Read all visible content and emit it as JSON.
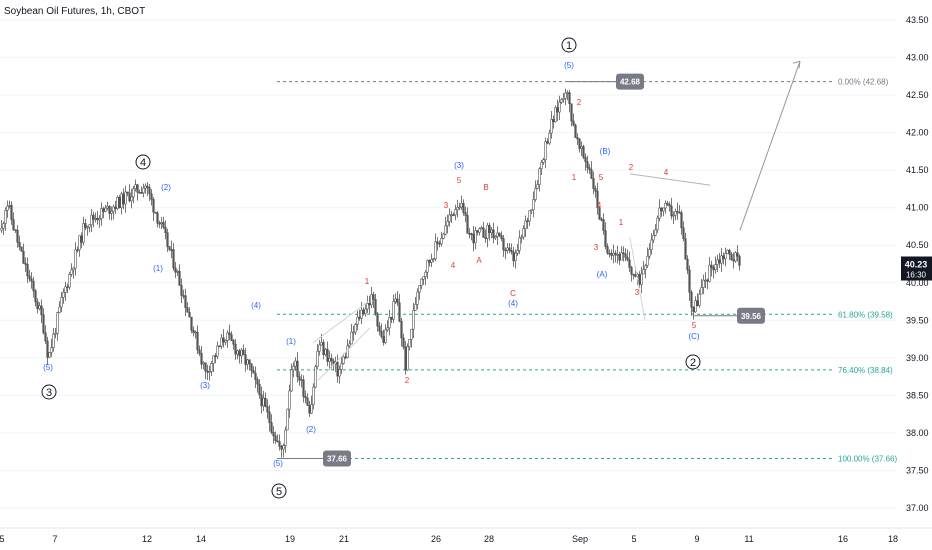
{
  "title": "Soybean Oil Futures, 1h, CBOT",
  "colors": {
    "candle": "#555555",
    "grid": "#f0f3fa",
    "blue_label": "#2962ff",
    "red_label": "#e53935",
    "black_label": "#131722",
    "fib": "#26a69a",
    "price_box": "#787b86",
    "last_box": "#131722"
  },
  "chart_data": {
    "type": "candlestick",
    "title": "Soybean Oil Futures, 1h, CBOT",
    "ylim": [
      36.75,
      43.6
    ],
    "y_ticks": [
      "43.50",
      "43.00",
      "42.50",
      "42.00",
      "41.50",
      "41.00",
      "40.50",
      "40.00",
      "39.50",
      "39.00",
      "38.50",
      "38.00",
      "37.50",
      "37.00"
    ],
    "x_ticks": [
      "5",
      "7",
      "12",
      "14",
      "19",
      "21",
      "26",
      "28",
      "Sep",
      "5",
      "9",
      "11",
      "16",
      "18"
    ],
    "path_points": [
      [
        40.7,
        1
      ],
      [
        41.1,
        6
      ],
      [
        40.4,
        20
      ],
      [
        39.5,
        42
      ],
      [
        39.0,
        48
      ],
      [
        39.8,
        62
      ],
      [
        40.8,
        85
      ],
      [
        41.0,
        110
      ],
      [
        41.2,
        132
      ],
      [
        41.3,
        145
      ],
      [
        40.7,
        162
      ],
      [
        40.2,
        175
      ],
      [
        39.5,
        190
      ],
      [
        38.8,
        205
      ],
      [
        39.3,
        225
      ],
      [
        38.9,
        248
      ],
      [
        38.2,
        268
      ],
      [
        37.7,
        282
      ],
      [
        39.0,
        292
      ],
      [
        38.3,
        310
      ],
      [
        39.2,
        318
      ],
      [
        38.8,
        338
      ],
      [
        39.6,
        360
      ],
      [
        39.8,
        372
      ],
      [
        39.2,
        382
      ],
      [
        39.8,
        396
      ],
      [
        38.9,
        405
      ],
      [
        40.0,
        418
      ],
      [
        40.6,
        440
      ],
      [
        41.1,
        458
      ],
      [
        40.6,
        470
      ],
      [
        40.7,
        490
      ],
      [
        40.3,
        514
      ],
      [
        41.0,
        530
      ],
      [
        42.0,
        548
      ],
      [
        42.6,
        565
      ],
      [
        41.8,
        578
      ],
      [
        41.5,
        590
      ],
      [
        40.5,
        605
      ],
      [
        40.3,
        625
      ],
      [
        40.0,
        638
      ],
      [
        41.0,
        660
      ],
      [
        40.9,
        680
      ],
      [
        39.6,
        692
      ],
      [
        40.2,
        710
      ],
      [
        40.4,
        725
      ],
      [
        40.3,
        740
      ]
    ],
    "last_price": "40.23",
    "countdown": "16:30",
    "price_boxes": [
      "42.68",
      "39.56",
      "37.66"
    ],
    "fib_levels": [
      {
        "label": "0.00% (42.68)",
        "value": 42.68
      },
      {
        "label": "61.80% (39.58)",
        "value": 39.58
      },
      {
        "label": "76.40% (38.84)",
        "value": 38.84
      },
      {
        "label": "100.00% (37.66)",
        "value": 37.66
      }
    ],
    "circled_labels": [
      "1",
      "2",
      "3",
      "4",
      "5"
    ],
    "wave_labels_blue": [
      "(5)",
      "(1)",
      "(2)",
      "(3)",
      "(4)",
      "(5)",
      "(1)",
      "(2)",
      "(3)",
      "(4)",
      "(5)",
      "(B)",
      "(A)",
      "(C)"
    ],
    "wave_labels_red": [
      "1",
      "2",
      "3",
      "4",
      "5",
      "A",
      "B",
      "C",
      "2",
      "1",
      "5",
      "4",
      "3",
      "3",
      "2",
      "4",
      "1",
      "5"
    ]
  }
}
